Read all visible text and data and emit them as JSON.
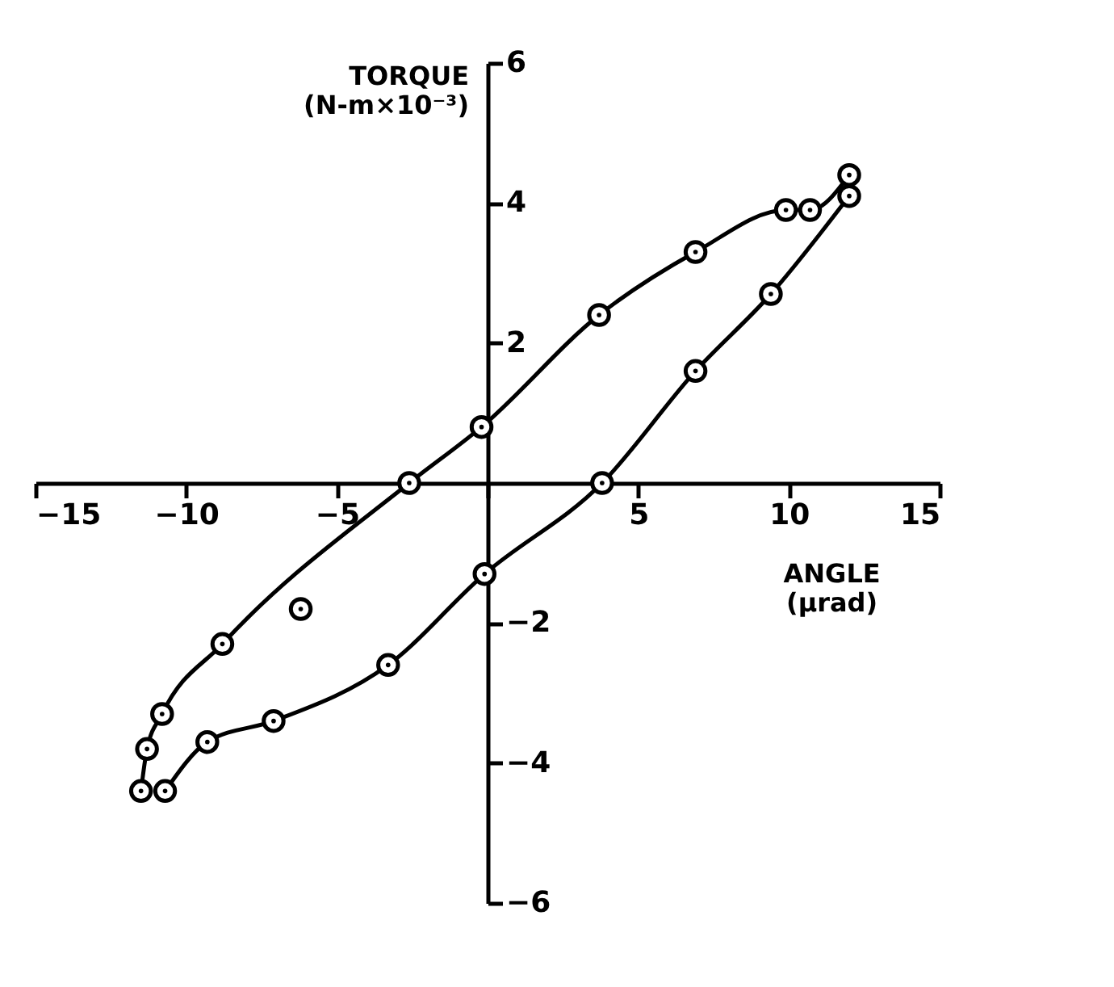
{
  "chart_data": {
    "type": "line",
    "xlabel": "ANGLE (µrad)",
    "ylabel": "TORQUE (N-m×10⁻³)",
    "xlim": [
      -15,
      15
    ],
    "ylim": [
      -6,
      6
    ],
    "xticks": [
      -15,
      -10,
      -5,
      {
        "value": 0,
        "label": null
      },
      5,
      10,
      15
    ],
    "yticks": [
      -6,
      -4,
      -2,
      2,
      4,
      6
    ],
    "grid": false,
    "marker": "circle",
    "line_style": "solid",
    "series": [
      {
        "color": "#000000",
        "x": [
          -11.5,
          -11.3,
          -10.8,
          -8.8,
          -2.6,
          -0.2,
          3.7,
          6.9,
          9.9,
          10.7,
          12.0
        ],
        "values": [
          -4.4,
          -3.8,
          -3.3,
          -2.3,
          0.0,
          0.8,
          2.4,
          3.3,
          3.9,
          3.9,
          4.4
        ]
      },
      {
        "color": "#000000",
        "x": [
          -10.7,
          -9.3,
          -7.1,
          -3.3,
          -0.1,
          3.8,
          6.9,
          9.4,
          12.0
        ],
        "values": [
          -4.4,
          -3.7,
          -3.4,
          -2.6,
          -1.3,
          0.0,
          1.6,
          2.7,
          4.1
        ]
      },
      {
        "type": "scatter",
        "color": "#000000",
        "x": [
          -6.2
        ],
        "values": [
          -1.8
        ]
      }
    ]
  }
}
